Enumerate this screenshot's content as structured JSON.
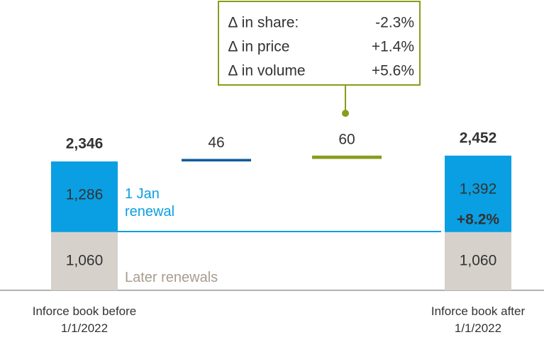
{
  "chart_data": {
    "type": "waterfall",
    "categories": [
      "Inforce book before 1/1/2022",
      null,
      null,
      "Inforce book after 1/1/2022"
    ],
    "series": [
      {
        "name": "Later renewals",
        "color": "#d6d1cb",
        "label_color": "#a89c90",
        "values": [
          1060,
          null,
          null,
          1060
        ],
        "value_labels": [
          "1,060",
          null,
          null,
          "1,060"
        ]
      },
      {
        "name": "1 Jan renewal",
        "color": "#0a9fe2",
        "label_color": "#0a9fe2",
        "values": [
          1286,
          null,
          null,
          1392
        ],
        "value_labels": [
          "1,286",
          null,
          null,
          "1,392"
        ]
      }
    ],
    "changes": {
      "values": [
        null,
        46,
        60,
        null
      ],
      "colors": [
        null,
        "#0f5c9c",
        "#8a9b1c",
        null
      ]
    },
    "totals": {
      "values": [
        2346,
        null,
        null,
        2452
      ],
      "value_labels": [
        "2,346",
        null,
        null,
        "2,452"
      ]
    },
    "growth_label": "+8.2%",
    "callout": {
      "color": "#8a9b1c",
      "rows": [
        [
          "∆ in share:",
          "-2.3%"
        ],
        [
          "∆ in price",
          "+1.4%"
        ],
        [
          "∆ in volume",
          "+5.6%"
        ]
      ]
    },
    "ylim": [
      0,
      5285
    ]
  }
}
